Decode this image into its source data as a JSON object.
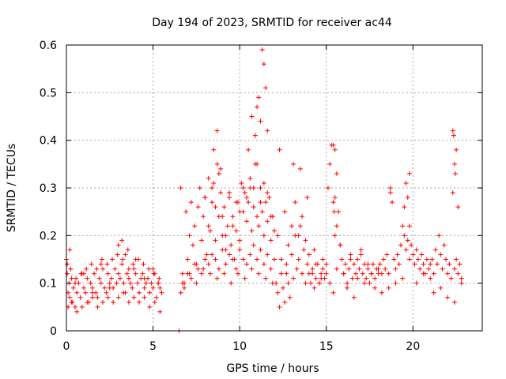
{
  "chart_data": {
    "type": "scatter",
    "title": "Day 194 of 2023, SRMTID for receiver ac44",
    "xlabel": "GPS time / hours",
    "ylabel": "SRMTID / TECUs",
    "xlim": [
      0,
      24
    ],
    "ylim": [
      0,
      0.6
    ],
    "xticks": [
      0,
      5,
      10,
      15,
      20
    ],
    "xtick_labels": [
      "0",
      "5",
      "10",
      "15",
      "20"
    ],
    "yticks": [
      0,
      0.1,
      0.2,
      0.3,
      0.4,
      0.5,
      0.6
    ],
    "ytick_labels": [
      "0",
      "0.1",
      "0.2",
      "0.3",
      "0.4",
      "0.5",
      "0.6"
    ],
    "grid": true,
    "marker": "+",
    "color": "#ff0000",
    "series": [
      {
        "name": "SRMTID",
        "x": [
          0.0,
          0.05,
          0.1,
          0.15,
          0.2,
          0.25,
          0.3,
          0.35,
          0.4,
          0.5,
          0.6,
          0.7,
          0.8,
          0.9,
          1.0,
          1.1,
          1.2,
          1.3,
          1.4,
          1.5,
          1.6,
          1.7,
          1.8,
          1.9,
          2.0,
          2.1,
          2.2,
          2.3,
          2.4,
          2.5,
          2.6,
          2.7,
          2.8,
          2.9,
          3.0,
          3.1,
          3.2,
          3.3,
          3.4,
          3.5,
          3.6,
          3.7,
          3.8,
          3.9,
          4.0,
          4.1,
          4.2,
          4.3,
          4.4,
          4.5,
          4.6,
          4.7,
          4.8,
          4.9,
          5.0,
          5.1,
          5.2,
          5.3,
          5.4,
          5.5,
          0.1,
          0.3,
          0.6,
          0.9,
          1.2,
          1.5,
          1.8,
          2.1,
          2.4,
          2.7,
          3.0,
          3.3,
          3.6,
          3.9,
          4.2,
          4.5,
          4.8,
          5.1,
          5.4,
          0.05,
          0.25,
          0.55,
          0.85,
          1.15,
          1.45,
          1.75,
          2.05,
          2.35,
          2.65,
          2.95,
          3.25,
          3.55,
          3.85,
          4.15,
          4.45,
          4.75,
          5.05,
          5.35,
          0.2,
          0.5,
          1.0,
          1.5,
          2.0,
          2.5,
          3.0,
          3.2,
          3.4,
          3.6,
          4.0,
          4.5,
          5.0,
          5.3,
          6.5,
          6.6,
          6.7,
          6.8,
          6.9,
          7.0,
          7.1,
          7.2,
          7.3,
          7.4,
          7.5,
          7.6,
          7.7,
          7.8,
          7.9,
          8.0,
          8.1,
          8.2,
          8.3,
          8.4,
          8.5,
          8.6,
          8.7,
          8.8,
          8.9,
          9.0,
          9.1,
          9.2,
          9.3,
          9.4,
          9.5,
          9.6,
          9.7,
          9.8,
          9.9,
          10.0,
          10.1,
          10.2,
          10.3,
          10.4,
          10.5,
          10.6,
          10.7,
          10.8,
          10.9,
          11.0,
          11.1,
          11.2,
          11.3,
          11.4,
          11.5,
          11.6,
          11.7,
          11.8,
          11.9,
          12.0,
          6.6,
          6.8,
          7.0,
          7.2,
          7.4,
          7.6,
          7.8,
          8.0,
          8.2,
          8.4,
          8.6,
          8.8,
          9.0,
          9.2,
          9.4,
          9.6,
          9.8,
          10.0,
          10.2,
          10.4,
          10.6,
          10.8,
          11.0,
          11.2,
          11.4,
          11.6,
          11.8,
          12.0,
          8.0,
          8.2,
          8.4,
          8.6,
          8.8,
          9.0,
          9.2,
          9.4,
          9.6,
          9.8,
          10.0,
          10.2,
          10.4,
          10.6,
          10.8,
          11.0,
          11.2,
          11.4,
          11.6,
          11.8,
          6.7,
          7.1,
          7.5,
          7.9,
          8.3,
          8.7,
          9.1,
          9.5,
          9.9,
          10.3,
          10.7,
          11.1,
          11.5,
          11.9,
          8.5,
          8.7,
          8.9,
          10.5,
          10.7,
          10.9,
          11.0,
          11.1,
          11.2,
          11.3,
          11.4,
          11.5,
          11.6,
          12.1,
          12.2,
          12.3,
          12.4,
          12.5,
          12.6,
          12.7,
          12.8,
          12.9,
          13.0,
          13.1,
          13.2,
          13.3,
          13.4,
          13.5,
          13.6,
          13.7,
          13.8,
          13.9,
          14.0,
          14.1,
          14.2,
          14.3,
          14.4,
          14.5,
          14.6,
          14.7,
          14.8,
          14.9,
          15.0,
          12.2,
          12.4,
          12.6,
          12.8,
          13.0,
          13.2,
          13.4,
          13.6,
          13.8,
          14.0,
          14.2,
          14.4,
          14.6,
          14.8,
          15.0,
          12.3,
          12.7,
          13.1,
          13.5,
          13.9,
          14.3,
          14.7,
          15.1,
          15.2,
          15.3,
          15.4,
          15.5,
          15.6,
          15.7,
          15.8,
          15.9,
          16.0,
          16.1,
          16.2,
          16.3,
          16.4,
          16.5,
          16.6,
          16.7,
          16.8,
          16.9,
          17.0,
          17.1,
          17.2,
          17.3,
          17.4,
          17.5,
          17.6,
          17.7,
          17.8,
          17.9,
          18.0,
          15.2,
          15.4,
          15.6,
          15.8,
          16.0,
          16.2,
          16.4,
          16.6,
          16.8,
          17.0,
          17.2,
          17.4,
          17.6,
          17.8,
          18.0,
          15.4,
          15.5,
          15.6,
          15.5,
          15.45,
          18.1,
          18.2,
          18.3,
          18.4,
          18.5,
          18.6,
          18.7,
          18.8,
          18.9,
          19.0,
          19.1,
          19.2,
          19.3,
          19.4,
          19.5,
          19.6,
          19.7,
          19.8,
          19.9,
          20.0,
          20.1,
          20.2,
          20.3,
          20.4,
          20.5,
          20.6,
          20.7,
          20.8,
          20.9,
          21.0,
          18.2,
          18.6,
          19.0,
          19.4,
          19.8,
          20.2,
          20.6,
          21.0,
          18.7,
          19.5,
          19.6,
          19.7,
          19.8,
          21.1,
          21.2,
          21.3,
          21.4,
          21.5,
          21.6,
          21.7,
          21.8,
          21.9,
          22.0,
          22.1,
          22.2,
          22.3,
          22.4,
          22.5,
          22.6,
          22.7,
          22.8,
          21.2,
          21.6,
          22.0,
          22.4,
          22.8,
          22.3,
          22.35,
          22.4,
          22.45,
          22.5,
          22.6
        ],
        "y": [
          0.15,
          0.12,
          0.08,
          0.1,
          0.07,
          0.13,
          0.11,
          0.06,
          0.09,
          0.05,
          0.08,
          0.1,
          0.07,
          0.12,
          0.09,
          0.08,
          0.11,
          0.06,
          0.1,
          0.09,
          0.12,
          0.08,
          0.07,
          0.11,
          0.1,
          0.13,
          0.09,
          0.08,
          0.12,
          0.1,
          0.11,
          0.09,
          0.13,
          0.1,
          0.12,
          0.11,
          0.14,
          0.1,
          0.08,
          0.12,
          0.11,
          0.1,
          0.09,
          0.13,
          0.12,
          0.1,
          0.08,
          0.11,
          0.12,
          0.09,
          0.1,
          0.11,
          0.08,
          0.1,
          0.09,
          0.12,
          0.07,
          0.1,
          0.09,
          0.08,
          0.05,
          0.06,
          0.04,
          0.05,
          0.06,
          0.07,
          0.05,
          0.06,
          0.07,
          0.06,
          0.07,
          0.08,
          0.06,
          0.07,
          0.06,
          0.07,
          0.05,
          0.06,
          0.04,
          0.14,
          0.13,
          0.11,
          0.12,
          0.13,
          0.14,
          0.13,
          0.15,
          0.14,
          0.15,
          0.16,
          0.15,
          0.17,
          0.14,
          0.15,
          0.14,
          0.13,
          0.12,
          0.11,
          0.17,
          0.1,
          0.12,
          0.08,
          0.14,
          0.09,
          0.18,
          0.19,
          0.16,
          0.13,
          0.15,
          0.11,
          0.13,
          0.1,
          0.0,
          0.3,
          0.12,
          0.09,
          0.25,
          0.15,
          0.2,
          0.27,
          0.18,
          0.22,
          0.14,
          0.26,
          0.3,
          0.19,
          0.24,
          0.28,
          0.16,
          0.32,
          0.21,
          0.27,
          0.31,
          0.19,
          0.35,
          0.24,
          0.29,
          0.2,
          0.26,
          0.17,
          0.22,
          0.28,
          0.18,
          0.24,
          0.15,
          0.21,
          0.27,
          0.19,
          0.31,
          0.25,
          0.29,
          0.23,
          0.27,
          0.3,
          0.21,
          0.26,
          0.35,
          0.24,
          0.22,
          0.3,
          0.25,
          0.2,
          0.27,
          0.23,
          0.28,
          0.19,
          0.24,
          0.21,
          0.08,
          0.1,
          0.12,
          0.11,
          0.14,
          0.13,
          0.12,
          0.15,
          0.14,
          0.16,
          0.15,
          0.13,
          0.17,
          0.14,
          0.16,
          0.15,
          0.13,
          0.17,
          0.15,
          0.14,
          0.16,
          0.18,
          0.15,
          0.17,
          0.14,
          0.16,
          0.13,
          0.15,
          0.28,
          0.22,
          0.3,
          0.26,
          0.33,
          0.24,
          0.2,
          0.29,
          0.22,
          0.27,
          0.25,
          0.3,
          0.28,
          0.32,
          0.3,
          0.35,
          0.27,
          0.31,
          0.29,
          0.24,
          0.1,
          0.12,
          0.1,
          0.13,
          0.12,
          0.11,
          0.12,
          0.1,
          0.12,
          0.11,
          0.13,
          0.12,
          0.11,
          0.1,
          0.38,
          0.42,
          0.34,
          0.38,
          0.45,
          0.41,
          0.47,
          0.49,
          0.44,
          0.59,
          0.56,
          0.51,
          0.42,
          0.1,
          0.08,
          0.05,
          0.12,
          0.09,
          0.06,
          0.14,
          0.1,
          0.07,
          0.16,
          0.11,
          0.2,
          0.13,
          0.15,
          0.22,
          0.12,
          0.17,
          0.1,
          0.14,
          0.12,
          0.1,
          0.13,
          0.09,
          0.11,
          0.14,
          0.1,
          0.12,
          0.15,
          0.11,
          0.14,
          0.2,
          0.15,
          0.25,
          0.18,
          0.22,
          0.27,
          0.2,
          0.24,
          0.19,
          0.16,
          0.12,
          0.14,
          0.1,
          0.13,
          0.12,
          0.38,
          0.12,
          0.35,
          0.34,
          0.28,
          0.17,
          0.11,
          0.3,
          0.35,
          0.39,
          0.27,
          0.2,
          0.22,
          0.25,
          0.18,
          0.15,
          0.12,
          0.14,
          0.1,
          0.13,
          0.16,
          0.11,
          0.14,
          0.12,
          0.15,
          0.13,
          0.17,
          0.12,
          0.14,
          0.11,
          0.13,
          0.1,
          0.12,
          0.14,
          0.11,
          0.13,
          0.12,
          0.1,
          0.08,
          0.13,
          0.18,
          0.12,
          0.09,
          0.15,
          0.07,
          0.11,
          0.16,
          0.1,
          0.14,
          0.12,
          0.09,
          0.13,
          0.39,
          0.38,
          0.33,
          0.28,
          0.25,
          0.14,
          0.12,
          0.15,
          0.13,
          0.16,
          0.12,
          0.3,
          0.27,
          0.15,
          0.13,
          0.16,
          0.14,
          0.18,
          0.22,
          0.2,
          0.17,
          0.19,
          0.15,
          0.18,
          0.16,
          0.14,
          0.17,
          0.15,
          0.13,
          0.16,
          0.14,
          0.12,
          0.15,
          0.13,
          0.14,
          0.08,
          0.09,
          0.1,
          0.11,
          0.33,
          0.1,
          0.12,
          0.11,
          0.29,
          0.26,
          0.31,
          0.28,
          0.22,
          0.15,
          0.12,
          0.17,
          0.14,
          0.2,
          0.16,
          0.13,
          0.18,
          0.15,
          0.12,
          0.14,
          0.11,
          0.29,
          0.13,
          0.15,
          0.12,
          0.14,
          0.11,
          0.08,
          0.09,
          0.07,
          0.06,
          0.1,
          0.42,
          0.41,
          0.35,
          0.33,
          0.38,
          0.26
        ]
      }
    ]
  }
}
